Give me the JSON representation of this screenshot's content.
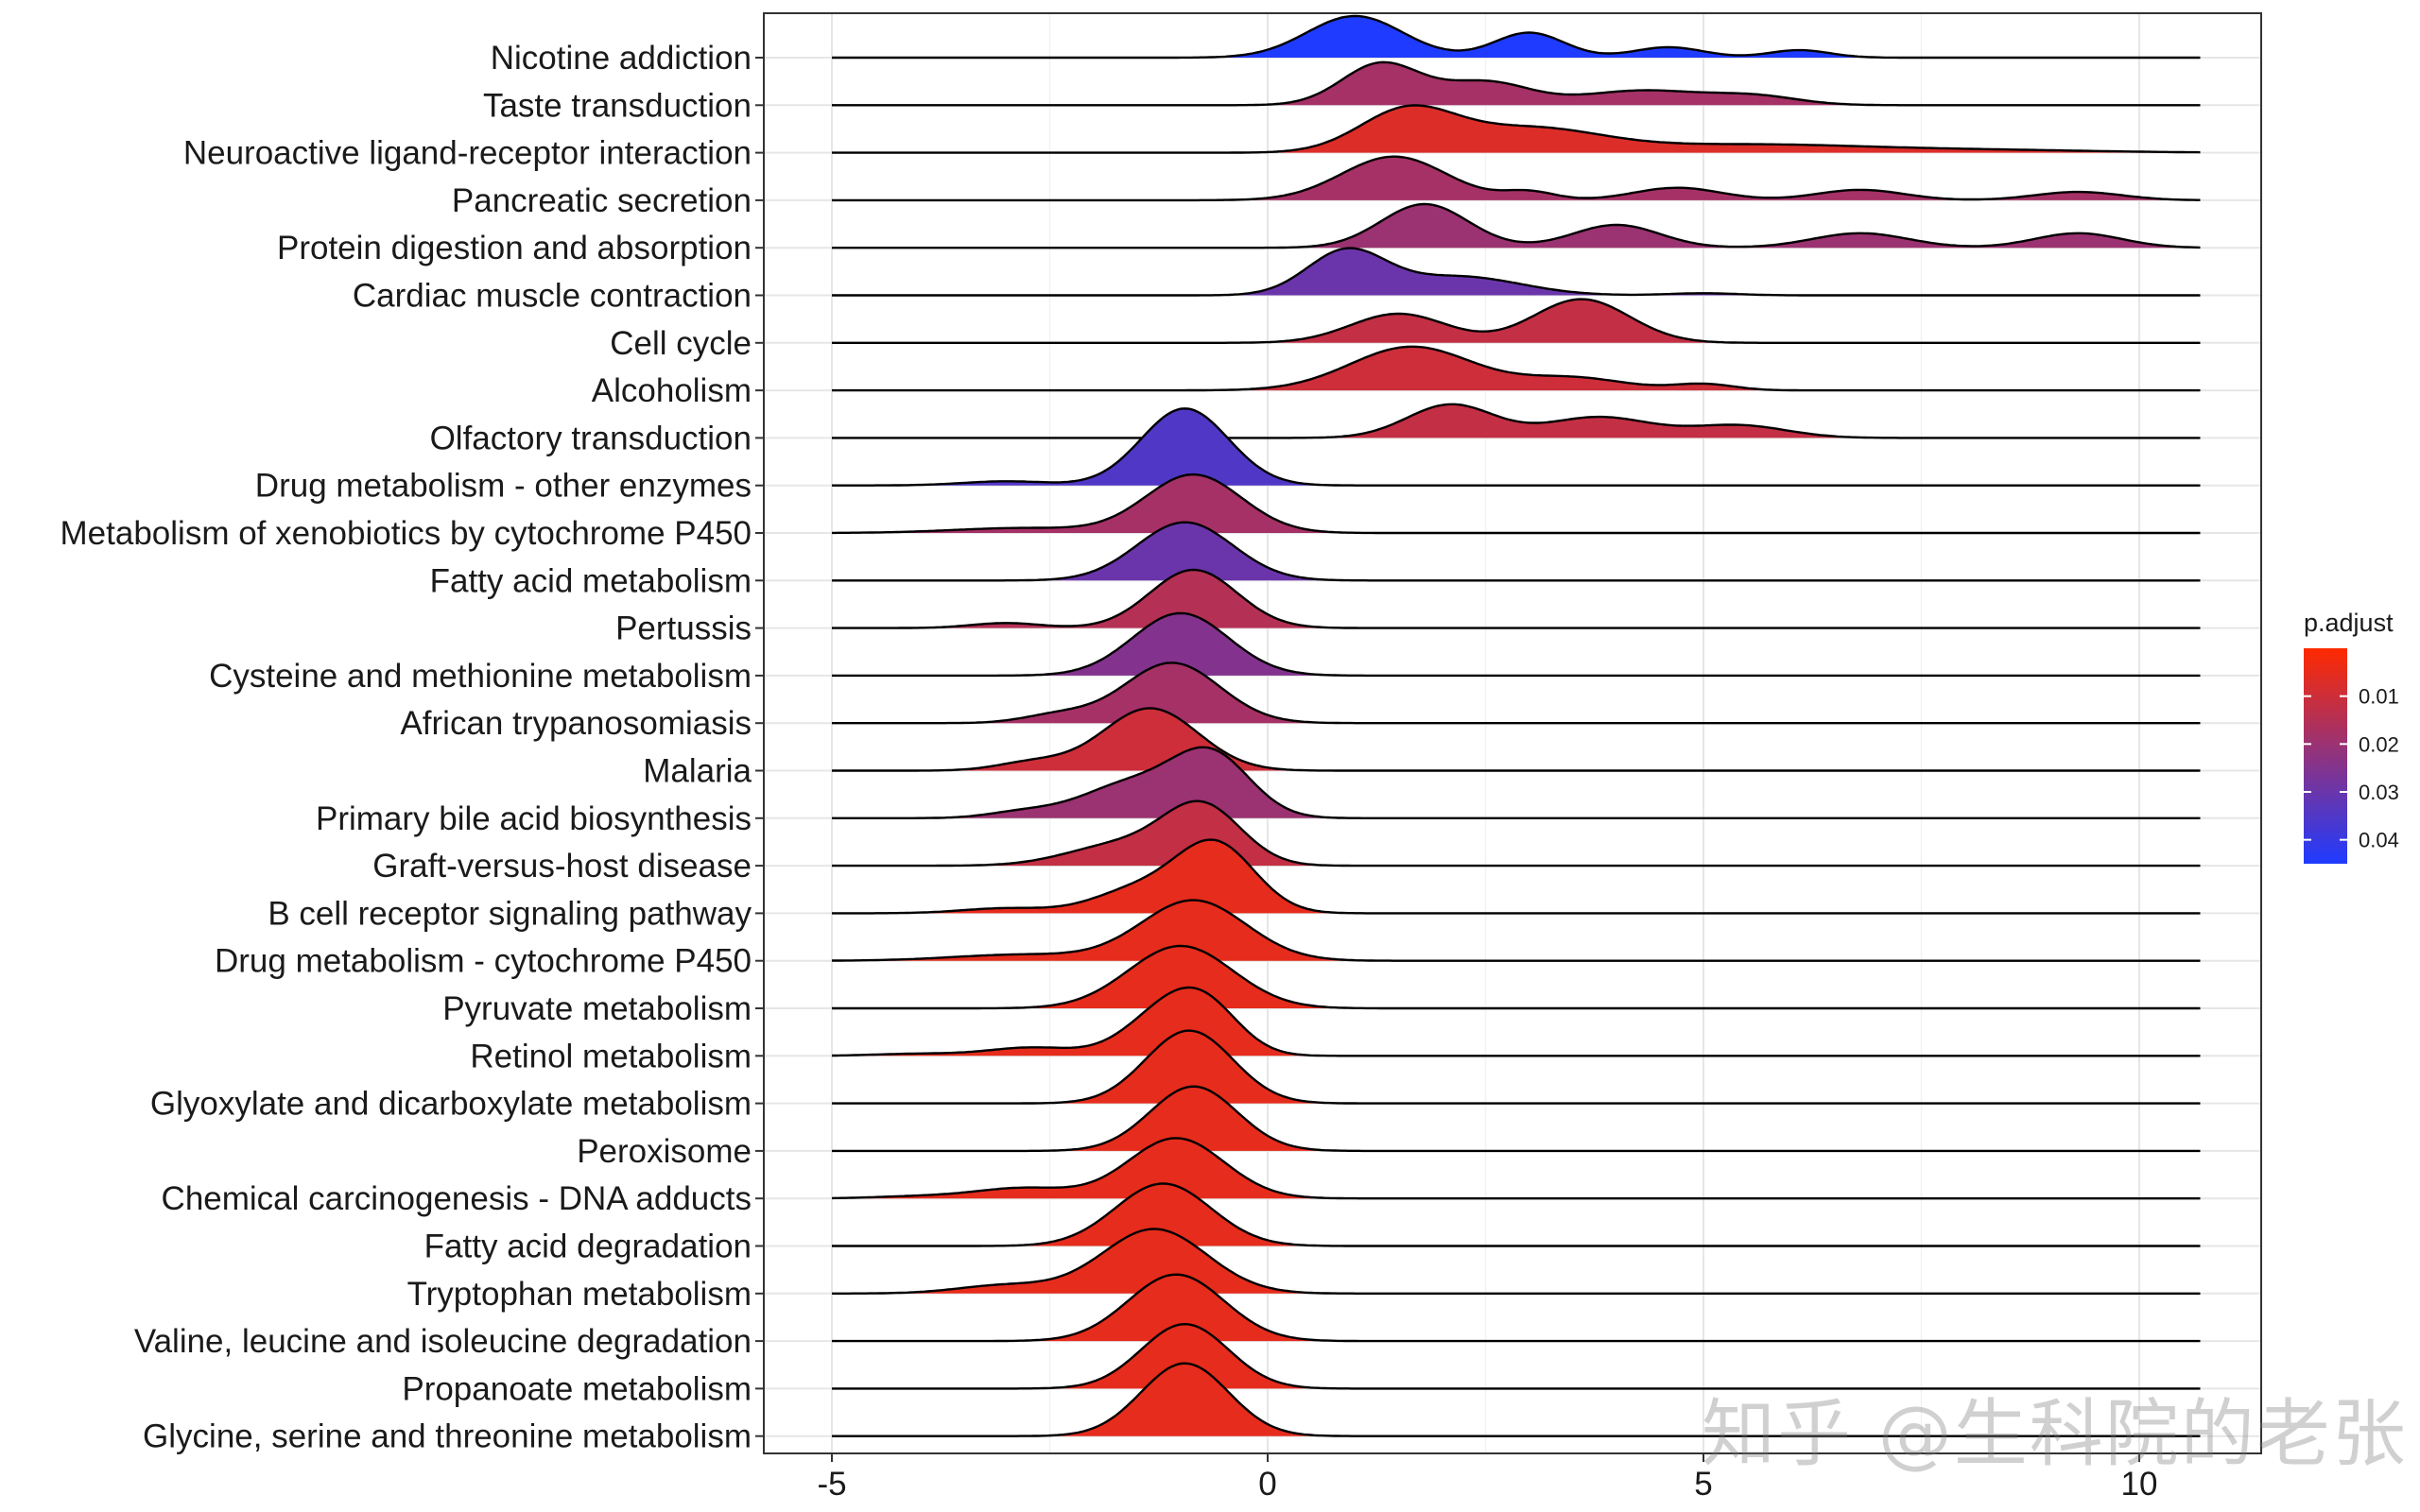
{
  "chart_data": {
    "type": "ridgeline",
    "title": "",
    "xlabel": "",
    "ylabel": "",
    "xlim": [
      -5,
      10.7
    ],
    "xticks": [
      -5,
      0,
      5,
      10
    ],
    "grid": true,
    "legend": {
      "title": "p.adjust",
      "position": "right",
      "ticks": [
        0.01,
        0.02,
        0.03,
        0.04
      ],
      "range": [
        0.0,
        0.045
      ],
      "low_color": "#ff2a00",
      "high_color": "#1f3bff"
    },
    "series": [
      {
        "category": "Nicotine addiction",
        "p_adjust": 0.045,
        "peaks": [
          [
            1.0,
            1.0,
            0.55
          ],
          [
            3.0,
            0.6,
            0.4
          ],
          [
            4.6,
            0.25,
            0.4
          ],
          [
            6.1,
            0.18,
            0.35
          ]
        ]
      },
      {
        "category": "Taste transduction",
        "p_adjust": 0.018,
        "peaks": [
          [
            1.3,
            1.0,
            0.45
          ],
          [
            2.5,
            0.55,
            0.5
          ],
          [
            4.3,
            0.35,
            0.7
          ],
          [
            5.6,
            0.2,
            0.5
          ]
        ]
      },
      {
        "category": "Neuroactive ligand-receptor interaction",
        "p_adjust": 0.007,
        "peaks": [
          [
            1.6,
            1.0,
            0.55
          ],
          [
            3.0,
            0.55,
            0.8
          ],
          [
            5.5,
            0.2,
            1.5
          ],
          [
            8.5,
            0.05,
            1.2
          ]
        ]
      },
      {
        "category": "Pancreatic secretion",
        "p_adjust": 0.018,
        "peaks": [
          [
            1.45,
            1.05,
            0.6
          ],
          [
            3.0,
            0.2,
            0.3
          ],
          [
            4.7,
            0.3,
            0.5
          ],
          [
            6.8,
            0.25,
            0.5
          ],
          [
            9.3,
            0.2,
            0.5
          ]
        ]
      },
      {
        "category": "Protein digestion and absorption",
        "p_adjust": 0.02,
        "peaks": [
          [
            1.8,
            1.05,
            0.5
          ],
          [
            4.0,
            0.55,
            0.5
          ],
          [
            6.8,
            0.35,
            0.55
          ],
          [
            9.3,
            0.35,
            0.5
          ]
        ]
      },
      {
        "category": "Cardiac muscle contraction",
        "p_adjust": 0.03,
        "peaks": [
          [
            0.9,
            1.05,
            0.45
          ],
          [
            2.2,
            0.45,
            0.7
          ],
          [
            5.0,
            0.05,
            0.4
          ]
        ]
      },
      {
        "category": "Cell cycle",
        "p_adjust": 0.012,
        "peaks": [
          [
            1.5,
            0.7,
            0.55
          ],
          [
            3.6,
            1.05,
            0.55
          ]
        ]
      },
      {
        "category": "Alcoholism",
        "p_adjust": 0.01,
        "peaks": [
          [
            1.65,
            1.05,
            0.7
          ],
          [
            3.5,
            0.3,
            0.6
          ],
          [
            5.0,
            0.15,
            0.35
          ]
        ]
      },
      {
        "category": "Olfactory transduction",
        "p_adjust": 0.012,
        "peaks": [
          [
            2.1,
            0.8,
            0.5
          ],
          [
            3.8,
            0.5,
            0.6
          ],
          [
            5.4,
            0.3,
            0.55
          ]
        ]
      },
      {
        "category": "Drug metabolism - other enzymes",
        "p_adjust": 0.035,
        "peaks": [
          [
            -0.95,
            1.85,
            0.5
          ],
          [
            -3.0,
            0.1,
            0.5
          ]
        ]
      },
      {
        "category": "Metabolism of xenobiotics by cytochrome P450",
        "p_adjust": 0.018,
        "peaks": [
          [
            -0.85,
            1.4,
            0.55
          ],
          [
            -2.8,
            0.12,
            0.8
          ]
        ]
      },
      {
        "category": "Fatty acid metabolism",
        "p_adjust": 0.03,
        "peaks": [
          [
            -0.95,
            1.4,
            0.55
          ]
        ]
      },
      {
        "category": "Pertussis",
        "p_adjust": 0.015,
        "peaks": [
          [
            -0.85,
            1.4,
            0.5
          ],
          [
            -3.0,
            0.12,
            0.4
          ]
        ]
      },
      {
        "category": "Cysteine and methionine metabolism",
        "p_adjust": 0.025,
        "peaks": [
          [
            -1.0,
            1.5,
            0.55
          ]
        ]
      },
      {
        "category": "African trypanosomiasis",
        "p_adjust": 0.018,
        "peaks": [
          [
            -1.1,
            1.45,
            0.55
          ],
          [
            -2.4,
            0.2,
            0.4
          ]
        ]
      },
      {
        "category": "Malaria",
        "p_adjust": 0.01,
        "peaks": [
          [
            -1.35,
            1.5,
            0.55
          ],
          [
            -2.7,
            0.2,
            0.4
          ]
        ]
      },
      {
        "category": "Primary bile acid biosynthesis",
        "p_adjust": 0.02,
        "peaks": [
          [
            -0.65,
            1.5,
            0.45
          ],
          [
            -1.6,
            0.8,
            0.55
          ],
          [
            -2.8,
            0.15,
            0.4
          ]
        ]
      },
      {
        "category": "Graft-versus-host disease",
        "p_adjust": 0.012,
        "peaks": [
          [
            -0.75,
            1.4,
            0.45
          ],
          [
            -1.7,
            0.5,
            0.6
          ]
        ]
      },
      {
        "category": "B cell receptor signaling pathway",
        "p_adjust": 0.005,
        "peaks": [
          [
            -0.6,
            1.65,
            0.45
          ],
          [
            -1.5,
            0.55,
            0.5
          ],
          [
            -3.0,
            0.12,
            0.5
          ]
        ]
      },
      {
        "category": "Drug metabolism - cytochrome P450",
        "p_adjust": 0.005,
        "peaks": [
          [
            -0.85,
            1.45,
            0.6
          ],
          [
            -2.8,
            0.15,
            0.8
          ]
        ]
      },
      {
        "category": "Pyruvate metabolism",
        "p_adjust": 0.005,
        "peaks": [
          [
            -1.0,
            1.5,
            0.6
          ]
        ]
      },
      {
        "category": "Retinol metabolism",
        "p_adjust": 0.005,
        "peaks": [
          [
            -1.2,
            0.95,
            0.45
          ],
          [
            -0.7,
            1.0,
            0.4
          ],
          [
            -2.7,
            0.2,
            0.5
          ],
          [
            -4.0,
            0.05,
            0.5
          ]
        ]
      },
      {
        "category": "Glyoxylate and dicarboxylate metabolism",
        "p_adjust": 0.005,
        "peaks": [
          [
            -0.9,
            1.75,
            0.5
          ]
        ]
      },
      {
        "category": "Peroxisome",
        "p_adjust": 0.005,
        "peaks": [
          [
            -0.85,
            1.55,
            0.5
          ]
        ]
      },
      {
        "category": "Chemical carcinogenesis - DNA adducts",
        "p_adjust": 0.005,
        "peaks": [
          [
            -1.05,
            1.45,
            0.55
          ],
          [
            -2.8,
            0.25,
            0.55
          ],
          [
            -4.0,
            0.05,
            0.5
          ]
        ]
      },
      {
        "category": "Fatty acid degradation",
        "p_adjust": 0.005,
        "peaks": [
          [
            -1.2,
            1.5,
            0.55
          ]
        ]
      },
      {
        "category": "Tryptophan metabolism",
        "p_adjust": 0.005,
        "peaks": [
          [
            -1.3,
            1.55,
            0.6
          ],
          [
            -3.0,
            0.2,
            0.55
          ]
        ]
      },
      {
        "category": "Valine, leucine and isoleucine degradation",
        "p_adjust": 0.005,
        "peaks": [
          [
            -1.05,
            1.6,
            0.55
          ]
        ]
      },
      {
        "category": "Propanoate metabolism",
        "p_adjust": 0.005,
        "peaks": [
          [
            -0.95,
            1.55,
            0.5
          ]
        ]
      },
      {
        "category": "Glycine, serine and threonine metabolism",
        "p_adjust": 0.005,
        "peaks": [
          [
            -0.95,
            1.75,
            0.5
          ]
        ]
      }
    ]
  },
  "watermark": "知乎 @生科院的老张"
}
